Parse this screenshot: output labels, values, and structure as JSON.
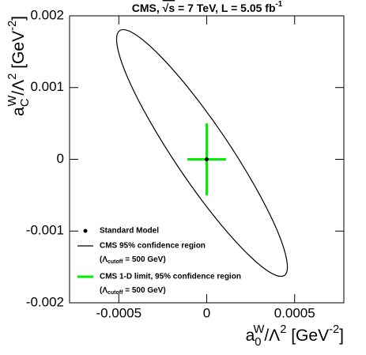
{
  "chart_data": {
    "type": "contour",
    "title": [
      "CMS, ",
      "√s",
      " = 7 TeV, L = 5.05 fb",
      "-1"
    ],
    "xlabel": [
      "a",
      "0",
      "W",
      "/Λ",
      "2",
      " [GeV",
      "-2",
      "]"
    ],
    "ylabel": [
      "a",
      "C",
      "W",
      "/Λ",
      "2",
      " [GeV",
      "-2",
      "]"
    ],
    "xlim": [
      -0.00078,
      0.00078
    ],
    "ylim": [
      -0.002,
      0.002
    ],
    "xticks": [
      -0.0005,
      0,
      0.0005
    ],
    "yticks": [
      -0.002,
      -0.001,
      0,
      0.001,
      0.002
    ],
    "legend": "lower left",
    "series": [
      {
        "name": "Standard Model",
        "type": "point",
        "color": "#000000",
        "x": [
          0
        ],
        "y": [
          0
        ]
      },
      {
        "name": "CMS 95% confidence region",
        "type": "contour",
        "note": [
          "(Λ",
          "cutoff",
          " = 500 GeV)"
        ],
        "color": "#000000",
        "x": [
          0.000442,
          0.000455,
          0.000396,
          0.000272,
          0.000103,
          -8.7e-05,
          -0.000267,
          -0.00041,
          -0.000495,
          -0.000509,
          -0.00045,
          -0.000326,
          -0.000156,
          3.3e-05,
          0.000213,
          0.000356
        ],
        "y": [
          -0.001618,
          -0.001405,
          -0.000964,
          -0.000366,
          0.000304,
          0.000941,
          0.001447,
          0.001747,
          0.001794,
          0.001581,
          0.00114,
          0.000542,
          -0.000128,
          -0.000765,
          -0.001271,
          -0.00157
        ]
      },
      {
        "name": "CMS 1-D limit, 95% confidence region",
        "type": "cross",
        "note": [
          "(Λ",
          "cutoff",
          " = 500 GeV)"
        ],
        "color": "#00ee00",
        "x": [
          -0.00011,
          0.00011
        ],
        "y": [
          -0.0005,
          0.0005
        ]
      }
    ]
  }
}
